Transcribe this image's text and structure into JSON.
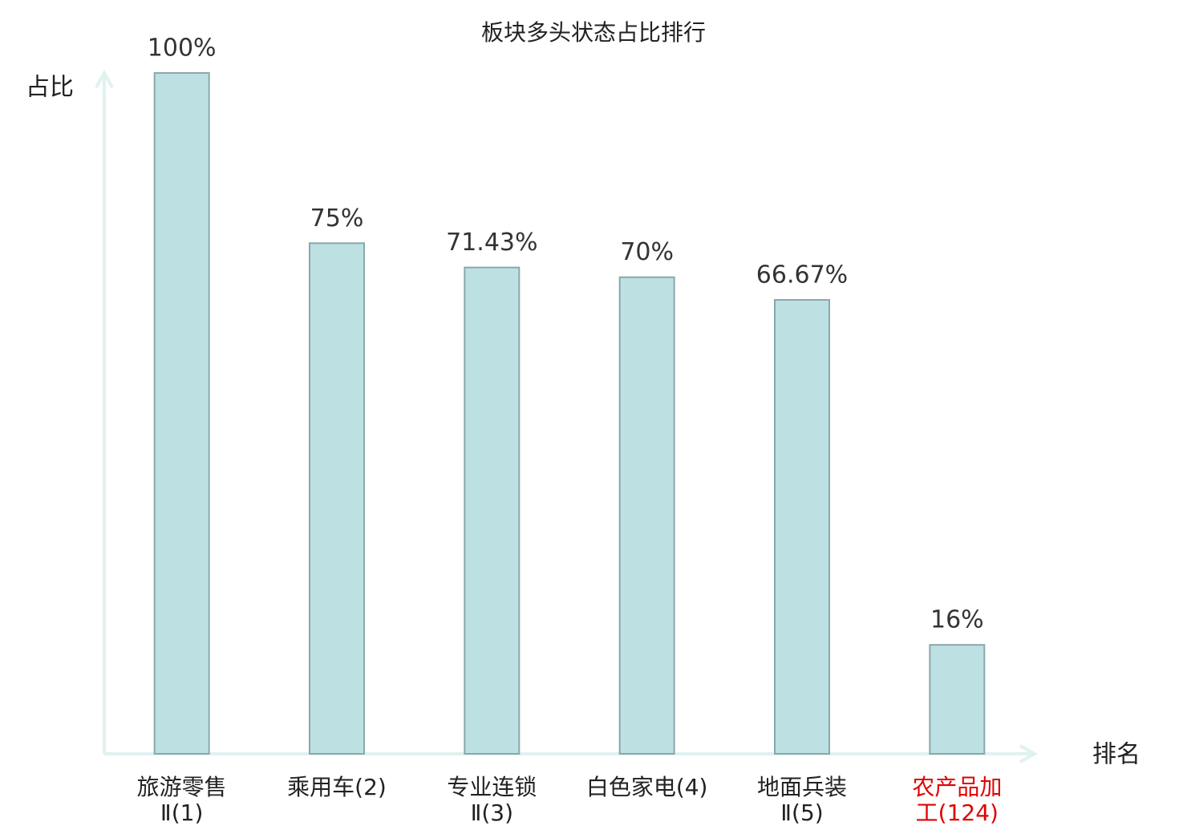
{
  "chart_data": {
    "type": "bar",
    "title": "板块多头状态占比排行",
    "y_label": "占比",
    "x_label": "排名",
    "categories": [
      "旅游零售\nⅡ(1)",
      "乘用车(2)",
      "专业连锁\nⅡ(3)",
      "白色家电(4)",
      "地面兵装\nⅡ(5)",
      "农产品加\n工(124)"
    ],
    "label_colors": [
      "#222222",
      "#222222",
      "#222222",
      "#222222",
      "#222222",
      "#e00000"
    ],
    "values": [
      100,
      75,
      71.43,
      70,
      66.67,
      16
    ],
    "value_labels": [
      "100%",
      "75%",
      "71.43%",
      "70%",
      "66.67%",
      "16%"
    ],
    "color": "#bde0e3",
    "edge_color": "#8aa8ab",
    "axis_color": "#dff2ef",
    "ylim": [
      0,
      100
    ]
  }
}
